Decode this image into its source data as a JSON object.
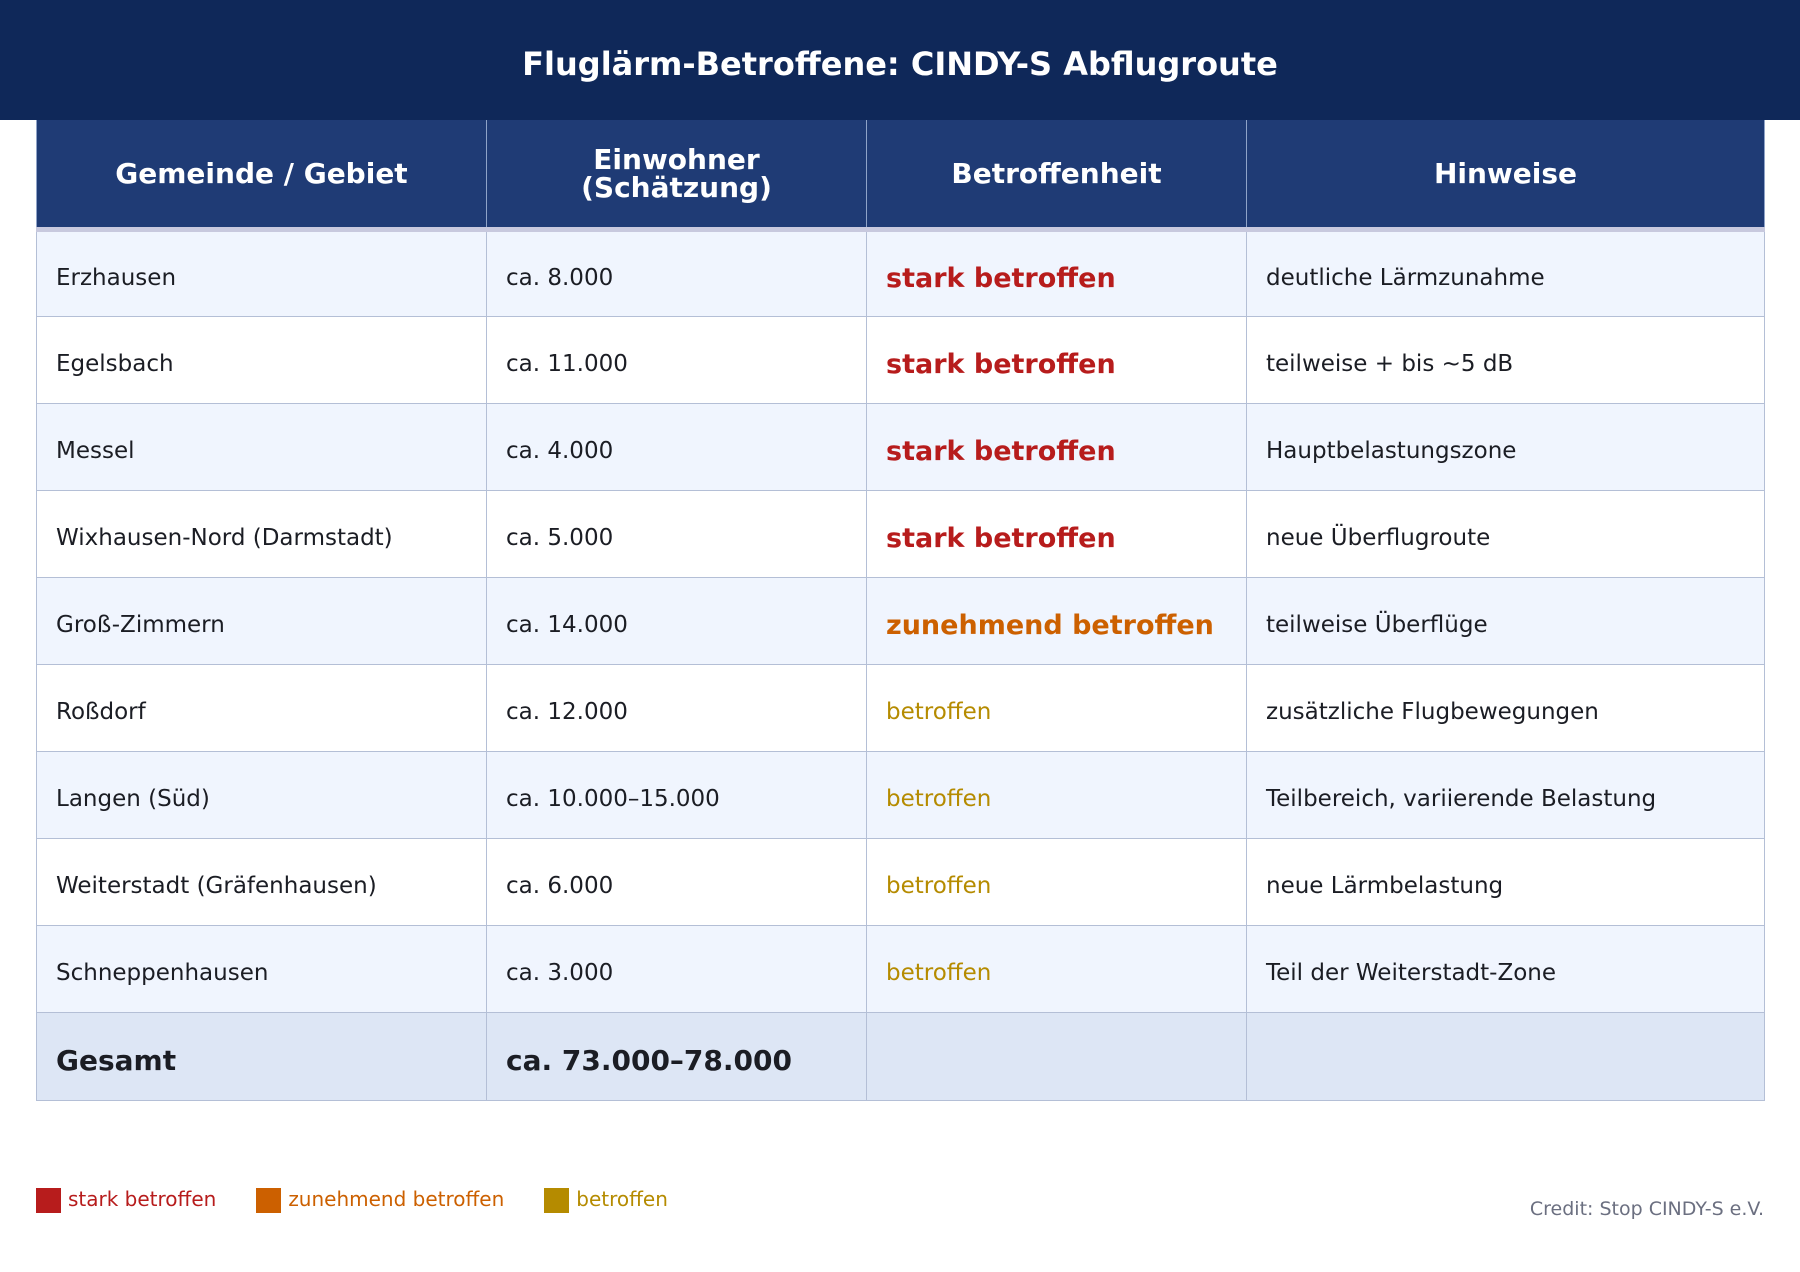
{
  "title": "Fluglärm-Betroffene: CINDY-S Abflugroute",
  "columns": [
    "Gemeinde / Gebiet",
    "Einwohner\n(Schätzung)",
    "Betroffenheit",
    "Hinweise"
  ],
  "rows": [
    {
      "gebiet": "Erzhausen",
      "einwohner": "ca. 8.000",
      "betroffenheit": "stark betroffen",
      "level": "stark",
      "hinweis": "deutliche Lärmzunahme"
    },
    {
      "gebiet": "Egelsbach",
      "einwohner": "ca. 11.000",
      "betroffenheit": "stark betroffen",
      "level": "stark",
      "hinweis": "teilweise + bis ~5 dB"
    },
    {
      "gebiet": "Messel",
      "einwohner": "ca. 4.000",
      "betroffenheit": "stark betroffen",
      "level": "stark",
      "hinweis": "Hauptbelastungszone"
    },
    {
      "gebiet": "Wixhausen-Nord (Darmstadt)",
      "einwohner": "ca. 5.000",
      "betroffenheit": "stark betroffen",
      "level": "stark",
      "hinweis": "neue Überflugroute"
    },
    {
      "gebiet": "Groß-Zimmern",
      "einwohner": "ca. 14.000",
      "betroffenheit": "zunehmend betroffen",
      "level": "zunehmend",
      "hinweis": "teilweise Überflüge"
    },
    {
      "gebiet": "Roßdorf",
      "einwohner": "ca. 12.000",
      "betroffenheit": "betroffen",
      "level": "betroffen",
      "hinweis": "zusätzliche Flugbewegungen"
    },
    {
      "gebiet": "Langen (Süd)",
      "einwohner": "ca. 10.000–15.000",
      "betroffenheit": "betroffen",
      "level": "betroffen",
      "hinweis": "Teilbereich, variierende Belastung"
    },
    {
      "gebiet": "Weiterstadt (Gräfenhausen)",
      "einwohner": "ca. 6.000",
      "betroffenheit": "betroffen",
      "level": "betroffen",
      "hinweis": "neue Lärmbelastung"
    },
    {
      "gebiet": "Schneppenhausen",
      "einwohner": "ca. 3.000",
      "betroffenheit": "betroffen",
      "level": "betroffen",
      "hinweis": "Teil der Weiterstadt-Zone"
    }
  ],
  "total": {
    "label": "Gesamt",
    "einwohner": "ca. 73.000–78.000"
  },
  "legend": [
    {
      "label": "stark betroffen",
      "color": "#b71c1c"
    },
    {
      "label": "zunehmend betroffen",
      "color": "#cc6000"
    },
    {
      "label": "betroffen",
      "color": "#b58b00"
    }
  ],
  "credit": "Credit: Stop CINDY-S e.V.",
  "colors": {
    "header_bg": "#0f2859",
    "table_header_bg": "#1f3b75",
    "row_alt_bg": "#f0f5fe",
    "total_bg": "#dde6f5"
  }
}
